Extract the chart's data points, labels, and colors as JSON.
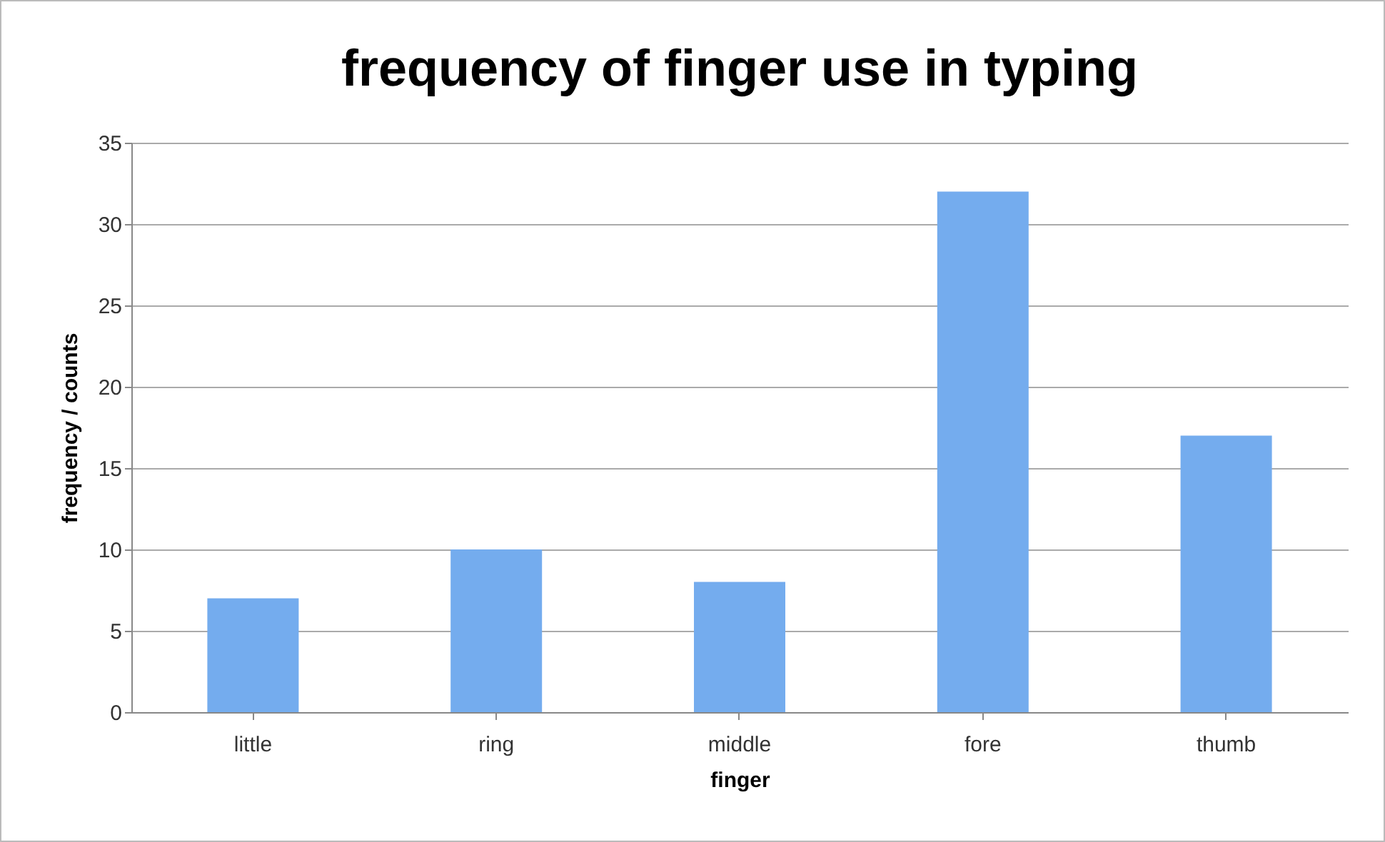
{
  "chart_data": {
    "type": "bar",
    "title": "frequency of finger use in typing",
    "xlabel": "finger",
    "ylabel": "frequency / counts",
    "categories": [
      "little",
      "ring",
      "middle",
      "fore",
      "thumb"
    ],
    "values": [
      7,
      10,
      8,
      32,
      17
    ],
    "color": "#74acee",
    "ylim": [
      0,
      35
    ],
    "yticks": [
      0,
      5,
      10,
      15,
      20,
      25,
      30,
      35
    ],
    "grid": "y"
  }
}
